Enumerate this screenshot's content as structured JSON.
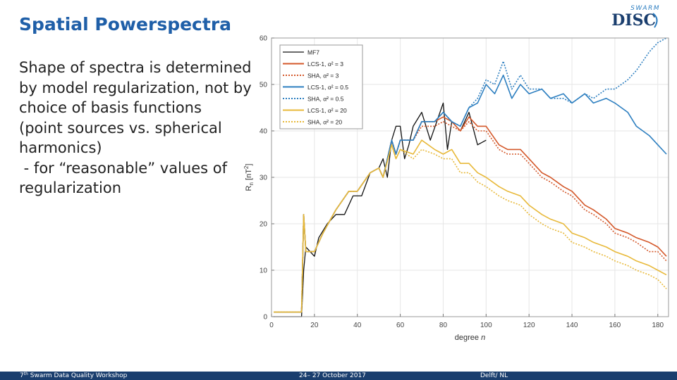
{
  "slide": {
    "title": "Spatial Powerspectra",
    "body_lines": [
      "Shape of spectra is determined",
      "by model regularization, not by",
      "choice of basis functions",
      "(point sources vs. spherical",
      "harmonics)",
      " - for “reasonable” values of",
      "regularization"
    ],
    "logo": {
      "top": "SWARM",
      "main": "DISC"
    },
    "footer": {
      "workshop_num": "7",
      "workshop_sup": "th",
      "workshop_rest": " Swarm Data Quality Workshop",
      "dates": "24– 27 October 2017",
      "location": "Delft/ NL"
    }
  },
  "colors": {
    "title": "#1f5fa8",
    "footer_bg": "#1a3e6e",
    "mf7": "#111111",
    "alpha3": "#d4582a",
    "alpha05": "#2d7fc0",
    "alpha20": "#e8b93a"
  },
  "chart_data": {
    "type": "line",
    "title": "",
    "xlabel": "degree",
    "xlabel_var": "n",
    "ylabel_main": "R",
    "ylabel_sub": "n",
    "ylabel_unit_open": " [nT",
    "ylabel_unit_sup": "2",
    "ylabel_unit_close": "]",
    "xlim": [
      0,
      185
    ],
    "ylim": [
      0,
      60
    ],
    "xticks": [
      0,
      20,
      40,
      60,
      80,
      100,
      120,
      140,
      160,
      180
    ],
    "yticks": [
      0,
      10,
      20,
      30,
      40,
      50,
      60
    ],
    "grid": true,
    "legend_position": "top-right",
    "series": [
      {
        "name": "MF7",
        "label_main": "MF7",
        "label_alpha": "",
        "color_key": "mf7",
        "style": "solid",
        "x": [
          1,
          14,
          15,
          16,
          20,
          22,
          26,
          30,
          34,
          38,
          42,
          46,
          50,
          52,
          54,
          56,
          58,
          60,
          62,
          64,
          66,
          70,
          74,
          80,
          82,
          84,
          88,
          92,
          96,
          100
        ],
        "y": [
          0,
          0,
          10,
          15,
          13,
          17,
          20,
          22,
          22,
          26,
          26,
          31,
          32,
          34,
          30,
          38,
          41,
          41,
          34,
          37,
          41,
          44,
          38,
          46,
          36,
          42,
          40,
          44,
          37,
          38
        ]
      },
      {
        "name": "LCS-1, alpha2 = 3",
        "label_main": "LCS-1, ",
        "label_alpha": "α² = 3",
        "color_key": "alpha3",
        "style": "solid",
        "x": [
          1,
          14,
          15,
          16,
          20,
          24,
          30,
          36,
          40,
          46,
          50,
          52,
          56,
          58,
          60,
          66,
          70,
          76,
          80,
          84,
          88,
          92,
          96,
          100,
          106,
          110,
          116,
          120,
          126,
          130,
          136,
          140,
          146,
          150,
          156,
          160,
          166,
          170,
          176,
          180,
          184
        ],
        "y": [
          1,
          1,
          22,
          14,
          14,
          18,
          23,
          27,
          27,
          31,
          32,
          30,
          38,
          35,
          38,
          38,
          42,
          42,
          43,
          42,
          40,
          43,
          41,
          41,
          37,
          36,
          36,
          34,
          31,
          30,
          28,
          27,
          24,
          23,
          21,
          19,
          18,
          17,
          16,
          15,
          13
        ]
      },
      {
        "name": "SHA, alpha2 = 3",
        "label_main": "SHA, ",
        "label_alpha": "α² = 3",
        "color_key": "alpha3",
        "style": "dotted",
        "x": [
          1,
          14,
          15,
          16,
          20,
          24,
          30,
          36,
          40,
          46,
          50,
          52,
          56,
          58,
          60,
          66,
          70,
          76,
          80,
          84,
          88,
          92,
          96,
          100,
          106,
          110,
          116,
          120,
          126,
          130,
          136,
          140,
          146,
          150,
          156,
          160,
          166,
          170,
          176,
          180,
          184
        ],
        "y": [
          1,
          1,
          22,
          14,
          14,
          18,
          23,
          27,
          27,
          31,
          32,
          30,
          38,
          35,
          38,
          38,
          41,
          41,
          42,
          41,
          40,
          42,
          40,
          40,
          36,
          35,
          35,
          33,
          30,
          29,
          27,
          26,
          23,
          22,
          20,
          18,
          17,
          16,
          14,
          14,
          12
        ]
      },
      {
        "name": "LCS-1, alpha2 = 0.5",
        "label_main": "LCS-1, ",
        "label_alpha": "α² = 0.5",
        "color_key": "alpha05",
        "style": "solid",
        "x": [
          1,
          14,
          15,
          16,
          20,
          24,
          30,
          36,
          40,
          46,
          50,
          52,
          56,
          58,
          60,
          66,
          70,
          76,
          80,
          84,
          88,
          92,
          96,
          100,
          104,
          108,
          112,
          116,
          120,
          126,
          130,
          136,
          140,
          146,
          150,
          156,
          160,
          166,
          170,
          176,
          180,
          184
        ],
        "y": [
          1,
          1,
          22,
          14,
          14,
          18,
          23,
          27,
          27,
          31,
          32,
          30,
          38,
          35,
          38,
          38,
          42,
          42,
          44,
          42,
          41,
          45,
          46,
          50,
          48,
          52,
          47,
          50,
          48,
          49,
          47,
          48,
          46,
          48,
          46,
          47,
          46,
          44,
          41,
          39,
          37,
          35
        ]
      },
      {
        "name": "SHA, alpha2 = 0.5",
        "label_main": "SHA, ",
        "label_alpha": "α² = 0.5",
        "color_key": "alpha05",
        "style": "dotted",
        "x": [
          1,
          14,
          15,
          16,
          20,
          24,
          30,
          36,
          40,
          46,
          50,
          52,
          56,
          58,
          60,
          66,
          70,
          76,
          80,
          84,
          88,
          92,
          96,
          100,
          104,
          108,
          112,
          116,
          120,
          126,
          130,
          136,
          140,
          146,
          150,
          156,
          160,
          166,
          170,
          176,
          180,
          184
        ],
        "y": [
          1,
          1,
          22,
          14,
          14,
          18,
          23,
          27,
          27,
          31,
          32,
          30,
          38,
          35,
          38,
          38,
          42,
          42,
          44,
          42,
          41,
          45,
          47,
          51,
          50,
          55,
          49,
          52,
          49,
          49,
          47,
          47,
          46,
          48,
          47,
          49,
          49,
          51,
          53,
          57,
          59,
          60
        ]
      },
      {
        "name": "LCS-1, alpha2 = 20",
        "label_main": "LCS-1, ",
        "label_alpha": "α² = 20",
        "color_key": "alpha20",
        "style": "solid",
        "x": [
          1,
          14,
          15,
          16,
          20,
          24,
          30,
          36,
          40,
          46,
          50,
          52,
          56,
          58,
          60,
          66,
          70,
          76,
          80,
          84,
          88,
          92,
          96,
          100,
          106,
          110,
          116,
          120,
          126,
          130,
          136,
          140,
          146,
          150,
          156,
          160,
          166,
          170,
          176,
          180,
          184
        ],
        "y": [
          1,
          1,
          22,
          14,
          14,
          18,
          23,
          27,
          27,
          31,
          32,
          30,
          37,
          34,
          36,
          35,
          38,
          36,
          35,
          36,
          33,
          33,
          31,
          30,
          28,
          27,
          26,
          24,
          22,
          21,
          20,
          18,
          17,
          16,
          15,
          14,
          13,
          12,
          11,
          10,
          9
        ]
      },
      {
        "name": "SHA, alpha2 = 20",
        "label_main": "SHA, ",
        "label_alpha": "α² = 20",
        "color_key": "alpha20",
        "style": "dotted",
        "x": [
          1,
          14,
          15,
          16,
          20,
          24,
          30,
          36,
          40,
          46,
          50,
          52,
          56,
          58,
          60,
          66,
          70,
          76,
          80,
          84,
          88,
          92,
          96,
          100,
          106,
          110,
          116,
          120,
          126,
          130,
          136,
          140,
          146,
          150,
          156,
          160,
          166,
          170,
          176,
          180,
          184
        ],
        "y": [
          1,
          1,
          22,
          14,
          14,
          18,
          23,
          27,
          27,
          31,
          32,
          30,
          37,
          34,
          36,
          34,
          36,
          35,
          34,
          34,
          31,
          31,
          29,
          28,
          26,
          25,
          24,
          22,
          20,
          19,
          18,
          16,
          15,
          14,
          13,
          12,
          11,
          10,
          9,
          8,
          6
        ]
      }
    ]
  }
}
